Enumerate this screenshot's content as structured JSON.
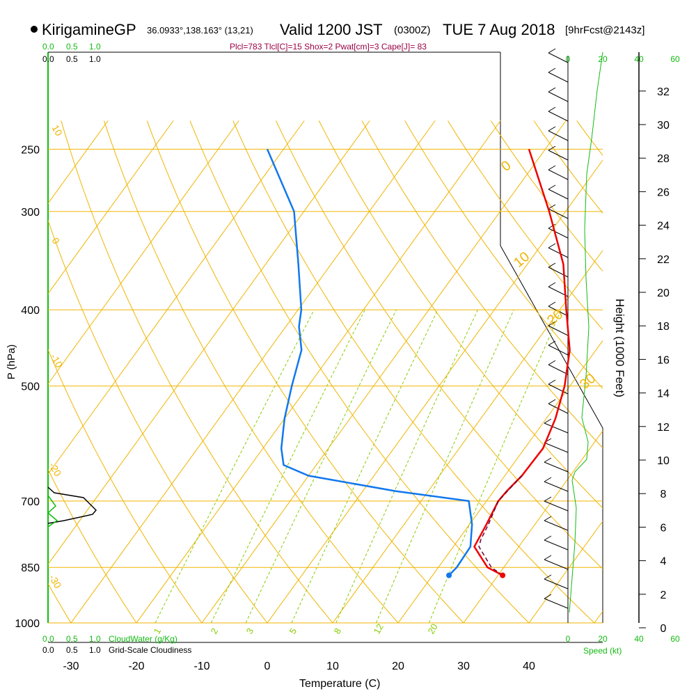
{
  "header": {
    "station": "KirigamineGP",
    "coords": "36.0933°,138.163° (13,21)",
    "valid_prefix": "Valid 1200 JST",
    "valid_z": "(0300Z)",
    "valid_date": "TUE 7 Aug 2018",
    "forecast": "[9hrFcst@2143z]",
    "indices": "Plcl=783 Tlcl[C]=15 Shox=2 Pwat[cm]=3 Cape[J]= 83"
  },
  "colors": {
    "temperature": "#ee0000",
    "dewpoint": "#1177ee",
    "parcel": "#660033",
    "isotherm": "#f0b400",
    "mixing_ratio": "#88cc00",
    "green": "#11bb11",
    "magenta": "#990044",
    "black": "#000000"
  },
  "chart_data": {
    "type": "line",
    "diagram": "skew-T log-P",
    "xlabel": "Temperature (C)",
    "ylabel": "P (hPa)",
    "right_label": "Height (1000 Feet)",
    "x_ticks": [
      -30,
      -20,
      -10,
      0,
      10,
      20,
      30,
      40
    ],
    "p_ticks": [
      250,
      300,
      400,
      500,
      700,
      850,
      1000
    ],
    "height_ticks": [
      0,
      2,
      4,
      6,
      8,
      10,
      12,
      14,
      16,
      18,
      20,
      22,
      24,
      26,
      28,
      30,
      32
    ],
    "isotherm_labels": [
      "10",
      "0",
      "-10",
      "-20",
      "-30",
      "0",
      "10",
      "20",
      "30"
    ],
    "mixing_ratio_labels": [
      "1",
      "2",
      "3",
      "5",
      "8",
      "12",
      "20"
    ],
    "mixing_ratios_gkg": [
      1,
      2,
      3,
      5,
      8,
      12,
      20
    ],
    "cloud_scale": {
      "top_green": [
        "0.0",
        "0.5",
        "1.0"
      ],
      "top_black": [
        "0.0",
        "0.5",
        "1.0"
      ],
      "bottom_green": [
        "0.0",
        "0.5",
        "1.0"
      ],
      "bottom_black": [
        "0.0",
        "0.5",
        "1.0"
      ],
      "cloudwater_label": "CloudWater (g/Kg)",
      "cloudiness_label": "Grid-Scale Cloudiness"
    },
    "speed_scale": {
      "ticks": [
        "0",
        "20",
        "40",
        "60"
      ],
      "label": "Speed (kt)"
    },
    "series": [
      {
        "name": "temperature",
        "points": [
          [
            870,
            30.7
          ],
          [
            850,
            27.5
          ],
          [
            800,
            23.2
          ],
          [
            750,
            22.6
          ],
          [
            700,
            21.8
          ],
          [
            680,
            22.0
          ],
          [
            650,
            22.6
          ],
          [
            600,
            22.8
          ],
          [
            550,
            21.4
          ],
          [
            500,
            19.2
          ],
          [
            450,
            16.0
          ],
          [
            400,
            11.0
          ],
          [
            350,
            5.5
          ],
          [
            300,
            -2.5
          ],
          [
            250,
            -12.5
          ]
        ]
      },
      {
        "name": "dewpoint",
        "points": [
          [
            870,
            22.5
          ],
          [
            850,
            22.8
          ],
          [
            800,
            22.6
          ],
          [
            750,
            20.4
          ],
          [
            700,
            17.3
          ],
          [
            680,
            5.0
          ],
          [
            650,
            -10.0
          ],
          [
            630,
            -15.0
          ],
          [
            600,
            -17.2
          ],
          [
            550,
            -20.0
          ],
          [
            500,
            -22.5
          ],
          [
            450,
            -25.0
          ],
          [
            420,
            -28.0
          ],
          [
            400,
            -29.5
          ],
          [
            350,
            -35.0
          ],
          [
            300,
            -41.5
          ],
          [
            250,
            -52.5
          ]
        ]
      },
      {
        "name": "parcel",
        "points": [
          [
            870,
            30.7
          ],
          [
            850,
            28.1
          ],
          [
            800,
            23.9
          ],
          [
            783,
            23.4
          ],
          [
            750,
            22.9
          ],
          [
            700,
            21.8
          ],
          [
            650,
            22.6
          ]
        ]
      }
    ],
    "surface": {
      "temperature": 30.7,
      "dewpoint": 22.5
    }
  }
}
